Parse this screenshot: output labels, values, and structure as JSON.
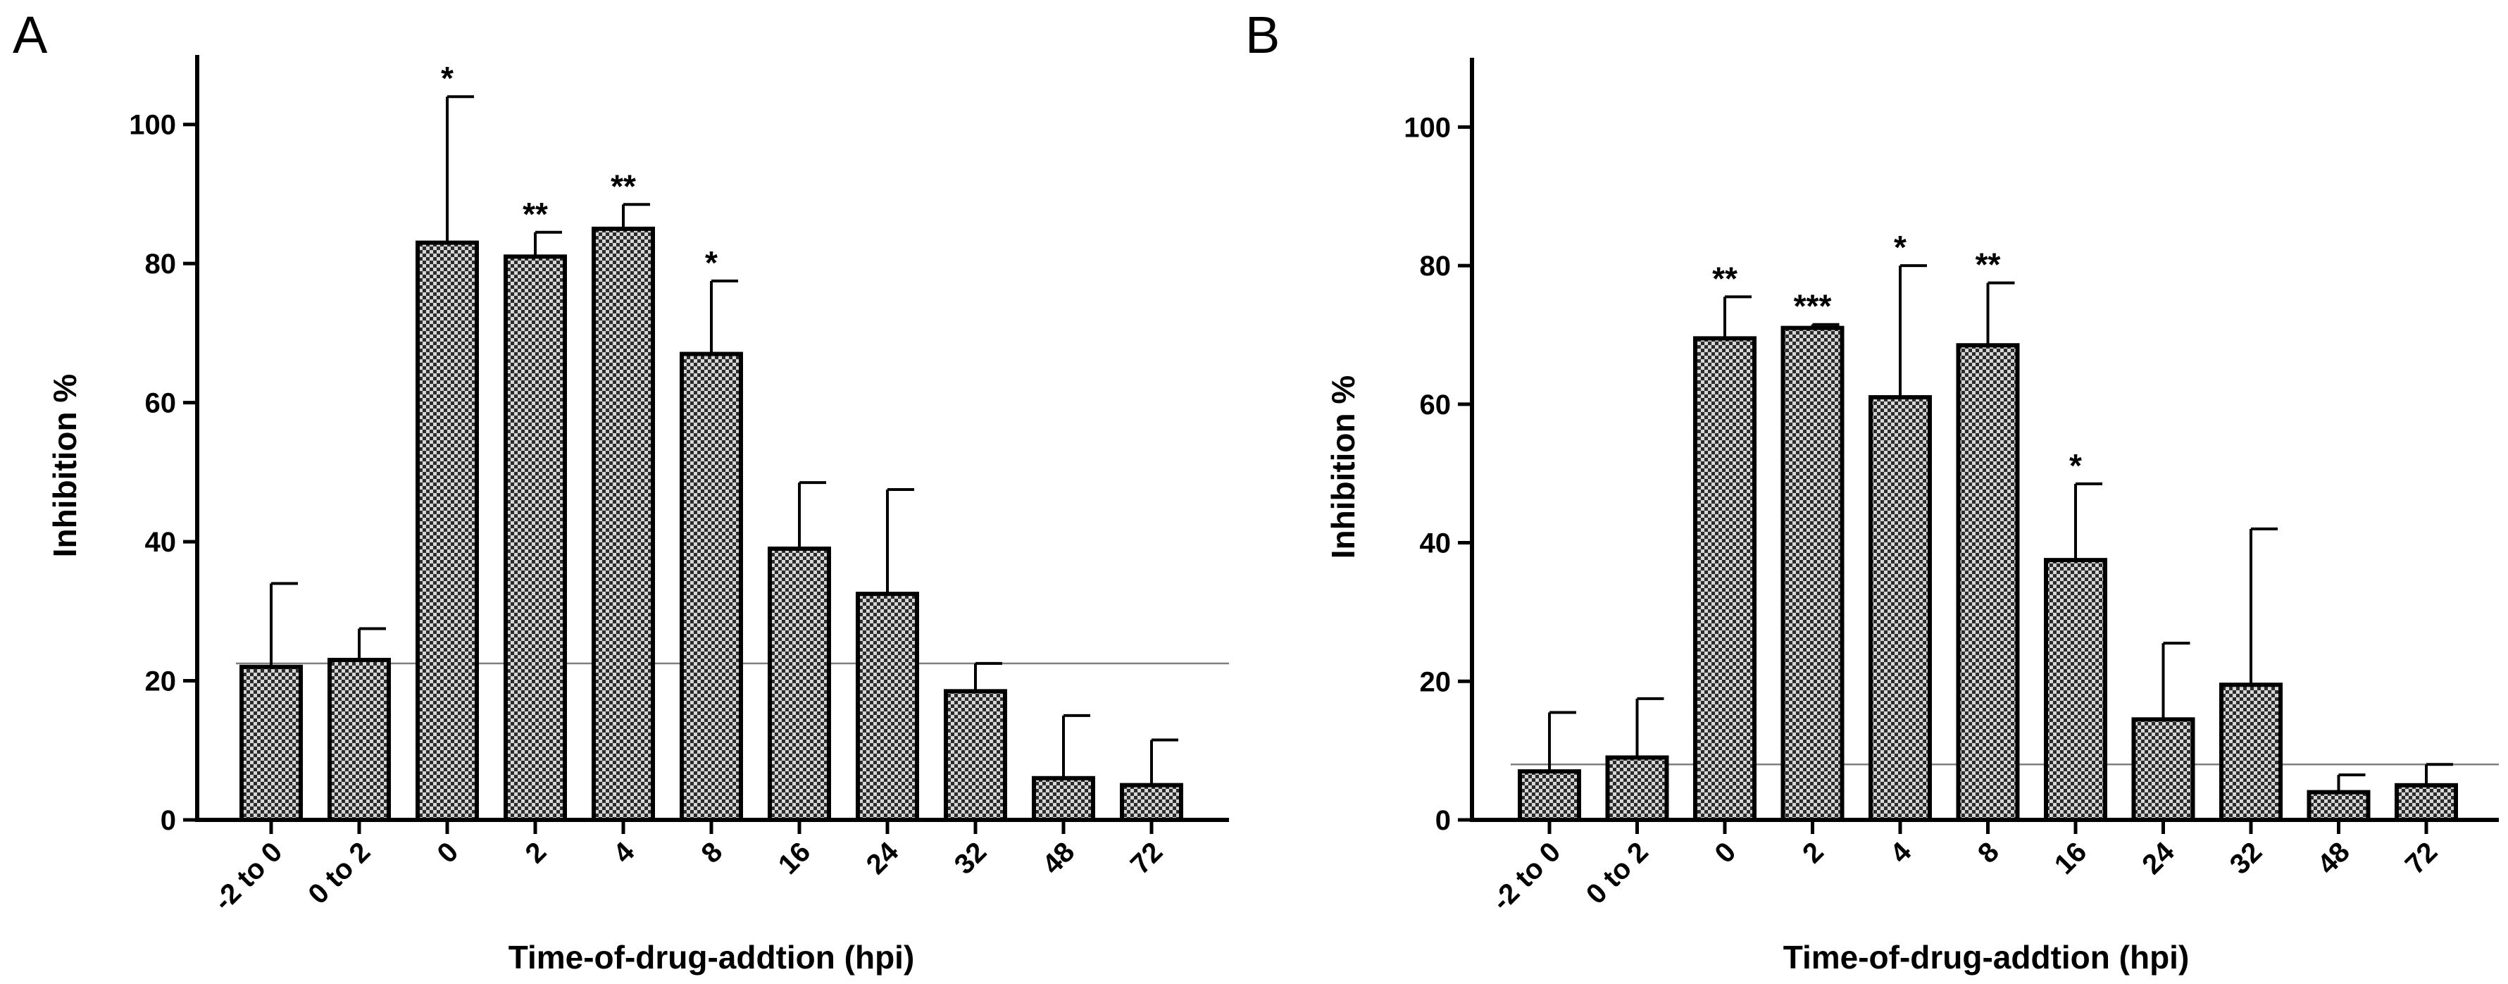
{
  "chart_data": [
    {
      "type": "bar",
      "panel": "A",
      "categories": [
        "-2 to 0",
        "0 to 2",
        "0",
        "2",
        "4",
        "8",
        "16",
        "24",
        "32",
        "48",
        "72"
      ],
      "values": [
        22,
        23,
        83,
        81,
        85,
        67,
        39,
        32.5,
        18.5,
        6,
        5
      ],
      "errors": [
        12,
        4.5,
        21,
        3.5,
        3.5,
        10.5,
        9.5,
        15,
        4,
        9,
        6.5
      ],
      "significance": [
        "",
        "",
        "*",
        "**",
        "**",
        "*",
        "",
        "",
        "",
        "",
        ""
      ],
      "reference_line": 22.5,
      "xlabel": "Time-of-drug-addtion (hpi)",
      "ylabel": "Inhibition %",
      "ylim": [
        0,
        110
      ],
      "yticks": [
        0,
        20,
        40,
        60,
        80,
        100
      ],
      "fill": "checkered",
      "colors": {
        "bar_fill": "#d9d9d9",
        "checker": "#2b2b2b",
        "outline": "#000000",
        "reference_line": "#7f7f7f"
      }
    },
    {
      "type": "bar",
      "panel": "B",
      "categories": [
        "-2 to 0",
        "0 to 2",
        "0",
        "2",
        "4",
        "8",
        "16",
        "24",
        "32",
        "48",
        "72"
      ],
      "values": [
        7,
        9,
        69.5,
        71,
        61,
        68.5,
        37.5,
        14.5,
        19.5,
        4,
        5
      ],
      "errors": [
        8.5,
        8.5,
        6,
        0.5,
        19,
        9,
        11,
        11,
        22.5,
        2.5,
        3
      ],
      "significance": [
        "",
        "",
        "**",
        "***",
        "*",
        "**",
        "*",
        "",
        "",
        "",
        ""
      ],
      "reference_line": 8,
      "xlabel": "Time-of-drug-addtion (hpi)",
      "ylabel": "Inhibition %",
      "ylim": [
        0,
        110
      ],
      "yticks": [
        0,
        20,
        40,
        60,
        80,
        100
      ],
      "fill": "checkered",
      "colors": {
        "bar_fill": "#d9d9d9",
        "checker": "#2b2b2b",
        "outline": "#000000",
        "reference_line": "#7f7f7f"
      }
    }
  ]
}
